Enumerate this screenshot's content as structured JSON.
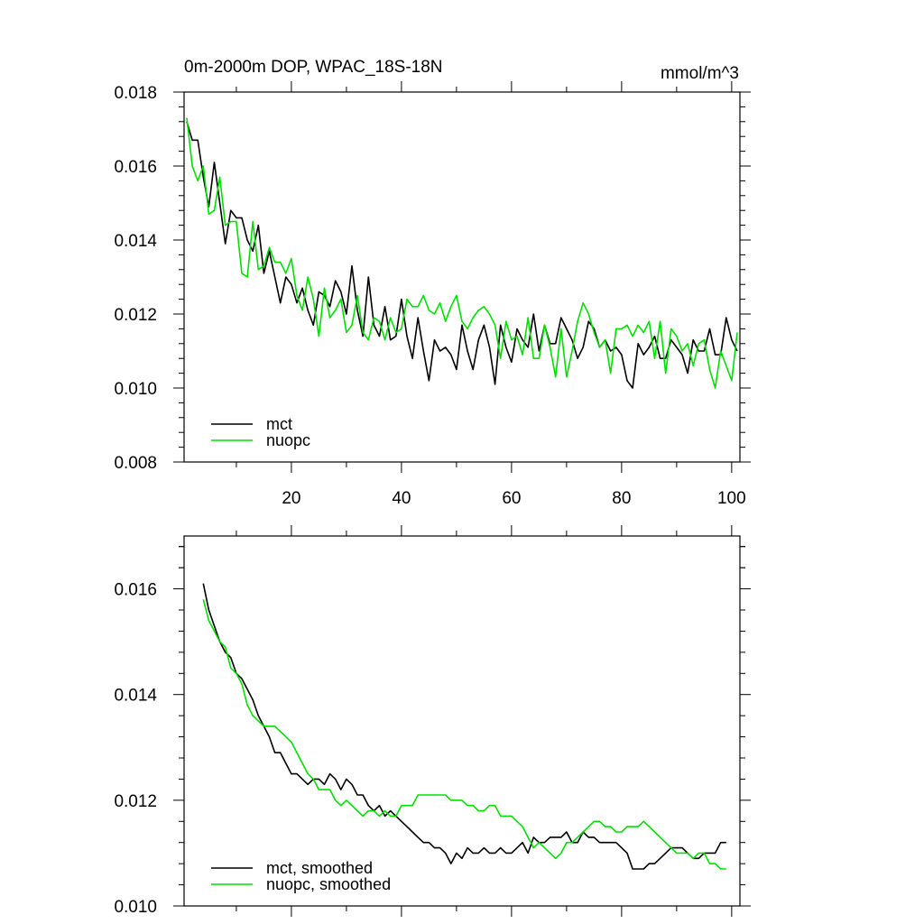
{
  "figure": {
    "title_left": "0m-2000m DOP, WPAC_18S-18N",
    "units": "mmol/m^3"
  },
  "colors": {
    "mct": "#000000",
    "nuopc": "#00e000"
  },
  "chart_data": [
    {
      "type": "line",
      "title": "0m-2000m DOP, WPAC_18S-18N",
      "units": "mmol/m^3",
      "xlabel": "",
      "ylabel": "",
      "xlim": [
        0.5,
        101.5
      ],
      "ylim": [
        0.008,
        0.018
      ],
      "xticks": [
        20,
        40,
        60,
        80,
        100
      ],
      "xtick_labels": [
        "20",
        "40",
        "60",
        "80",
        "100"
      ],
      "yticks": [
        0.008,
        0.01,
        0.012,
        0.014,
        0.016,
        0.018
      ],
      "ytick_labels": [
        "0.008",
        "0.010",
        "0.012",
        "0.014",
        "0.016",
        "0.018"
      ],
      "legend": "bottom-left",
      "series": [
        {
          "name": "mct",
          "color": "#000000",
          "x_start": 1,
          "values": [
            0.0172,
            0.0167,
            0.0167,
            0.0157,
            0.0149,
            0.0161,
            0.015,
            0.0139,
            0.0148,
            0.0146,
            0.0146,
            0.014,
            0.0137,
            0.0144,
            0.0131,
            0.0137,
            0.013,
            0.0123,
            0.013,
            0.0128,
            0.0123,
            0.0127,
            0.0121,
            0.0117,
            0.0126,
            0.0125,
            0.0122,
            0.0129,
            0.0126,
            0.012,
            0.0133,
            0.0121,
            0.0114,
            0.013,
            0.0117,
            0.0114,
            0.0122,
            0.0113,
            0.0114,
            0.0124,
            0.0114,
            0.0108,
            0.0119,
            0.011,
            0.0102,
            0.0113,
            0.011,
            0.0111,
            0.0109,
            0.0105,
            0.0117,
            0.011,
            0.0105,
            0.0113,
            0.0117,
            0.0111,
            0.0101,
            0.0117,
            0.0111,
            0.0107,
            0.0116,
            0.0113,
            0.0111,
            0.012,
            0.011,
            0.0117,
            0.0112,
            0.0112,
            0.0119,
            0.0116,
            0.0113,
            0.0108,
            0.0111,
            0.0118,
            0.0116,
            0.0111,
            0.0113,
            0.011,
            0.0111,
            0.0109,
            0.0102,
            0.01,
            0.0112,
            0.0109,
            0.0111,
            0.0114,
            0.0108,
            0.0108,
            0.0113,
            0.0111,
            0.0109,
            0.0104,
            0.0113,
            0.011,
            0.011,
            0.0116,
            0.0109,
            0.0109,
            0.0119,
            0.0113,
            0.011
          ]
        },
        {
          "name": "nuopc",
          "color": "#00e000",
          "x_start": 1,
          "values": [
            0.0173,
            0.016,
            0.0156,
            0.016,
            0.0147,
            0.0148,
            0.0157,
            0.0144,
            0.0145,
            0.0145,
            0.0131,
            0.013,
            0.0145,
            0.0132,
            0.0133,
            0.0138,
            0.0134,
            0.0134,
            0.0131,
            0.0135,
            0.0125,
            0.0121,
            0.013,
            0.0124,
            0.0114,
            0.0127,
            0.0119,
            0.0121,
            0.0124,
            0.0115,
            0.0117,
            0.0125,
            0.0115,
            0.0113,
            0.0119,
            0.0118,
            0.0113,
            0.0119,
            0.0115,
            0.0116,
            0.0124,
            0.0122,
            0.0122,
            0.0125,
            0.0121,
            0.012,
            0.0123,
            0.0118,
            0.0122,
            0.0125,
            0.0118,
            0.0116,
            0.0119,
            0.0121,
            0.0122,
            0.012,
            0.0117,
            0.0108,
            0.0118,
            0.0113,
            0.0114,
            0.0109,
            0.0119,
            0.0108,
            0.0108,
            0.0117,
            0.0111,
            0.0103,
            0.0116,
            0.0103,
            0.011,
            0.0118,
            0.0123,
            0.012,
            0.0115,
            0.0111,
            0.0113,
            0.0104,
            0.0116,
            0.0116,
            0.0117,
            0.0114,
            0.0117,
            0.0115,
            0.0118,
            0.0108,
            0.0118,
            0.0104,
            0.0116,
            0.0114,
            0.011,
            0.0112,
            0.0106,
            0.0112,
            0.0113,
            0.0105,
            0.01,
            0.011,
            0.0106,
            0.0102,
            0.0115
          ]
        }
      ]
    },
    {
      "type": "line",
      "title": "",
      "xlabel": "",
      "ylabel": "",
      "xlim": [
        0.5,
        101.5
      ],
      "ylim": [
        0.01,
        0.017
      ],
      "xticks": [
        20,
        40,
        60,
        80,
        100
      ],
      "xtick_labels": [],
      "yticks": [
        0.01,
        0.012,
        0.014,
        0.016
      ],
      "ytick_labels": [
        "0.010",
        "0.012",
        "0.014",
        "0.016"
      ],
      "legend": "bottom-left",
      "series": [
        {
          "name": "mct, smoothed",
          "color": "#000000",
          "x_start": 4,
          "values": [
            0.0161,
            0.0156,
            0.0153,
            0.015,
            0.0148,
            0.0147,
            0.0144,
            0.0143,
            0.0141,
            0.0139,
            0.0136,
            0.0134,
            0.0132,
            0.0129,
            0.0129,
            0.0127,
            0.0125,
            0.0125,
            0.0124,
            0.0123,
            0.0124,
            0.0124,
            0.0123,
            0.0125,
            0.0124,
            0.0122,
            0.0124,
            0.0123,
            0.0121,
            0.0121,
            0.0119,
            0.0118,
            0.0119,
            0.0117,
            0.0118,
            0.0117,
            0.0116,
            0.0115,
            0.0114,
            0.0113,
            0.0112,
            0.0112,
            0.0111,
            0.0111,
            0.011,
            0.0108,
            0.011,
            0.0109,
            0.0111,
            0.011,
            0.011,
            0.0111,
            0.011,
            0.011,
            0.0111,
            0.011,
            0.011,
            0.0111,
            0.0112,
            0.011,
            0.0113,
            0.0112,
            0.0112,
            0.0113,
            0.0113,
            0.0113,
            0.0114,
            0.0112,
            0.0112,
            0.0114,
            0.0113,
            0.0113,
            0.0112,
            0.0112,
            0.0112,
            0.0112,
            0.0111,
            0.011,
            0.0107,
            0.0107,
            0.0107,
            0.0108,
            0.0108,
            0.0109,
            0.011,
            0.0111,
            0.0111,
            0.0111,
            0.011,
            0.0109,
            0.0109,
            0.011,
            0.011,
            0.011,
            0.0112,
            0.0112
          ]
        },
        {
          "name": "nuopc, smoothed",
          "color": "#00e000",
          "x_start": 4,
          "values": [
            0.0158,
            0.0154,
            0.0152,
            0.015,
            0.0149,
            0.0145,
            0.0144,
            0.0142,
            0.0138,
            0.0136,
            0.0135,
            0.0134,
            0.0134,
            0.0134,
            0.0133,
            0.0132,
            0.0131,
            0.0129,
            0.0127,
            0.0125,
            0.0124,
            0.0122,
            0.0122,
            0.0122,
            0.012,
            0.0119,
            0.012,
            0.0119,
            0.0118,
            0.0117,
            0.0118,
            0.0118,
            0.0117,
            0.0118,
            0.0117,
            0.0117,
            0.0119,
            0.0119,
            0.0119,
            0.0121,
            0.0121,
            0.0121,
            0.0121,
            0.0121,
            0.0121,
            0.012,
            0.012,
            0.012,
            0.0119,
            0.0119,
            0.0118,
            0.0118,
            0.0119,
            0.0119,
            0.0117,
            0.0117,
            0.0117,
            0.0116,
            0.0115,
            0.0113,
            0.0111,
            0.0112,
            0.0111,
            0.011,
            0.0109,
            0.011,
            0.0112,
            0.0112,
            0.0113,
            0.0114,
            0.0115,
            0.0116,
            0.0116,
            0.0115,
            0.0115,
            0.0114,
            0.0114,
            0.0115,
            0.0115,
            0.0115,
            0.0116,
            0.0115,
            0.0114,
            0.0113,
            0.0112,
            0.0111,
            0.011,
            0.011,
            0.011,
            0.0109,
            0.011,
            0.011,
            0.0108,
            0.0108,
            0.0107,
            0.0107
          ]
        }
      ]
    }
  ]
}
